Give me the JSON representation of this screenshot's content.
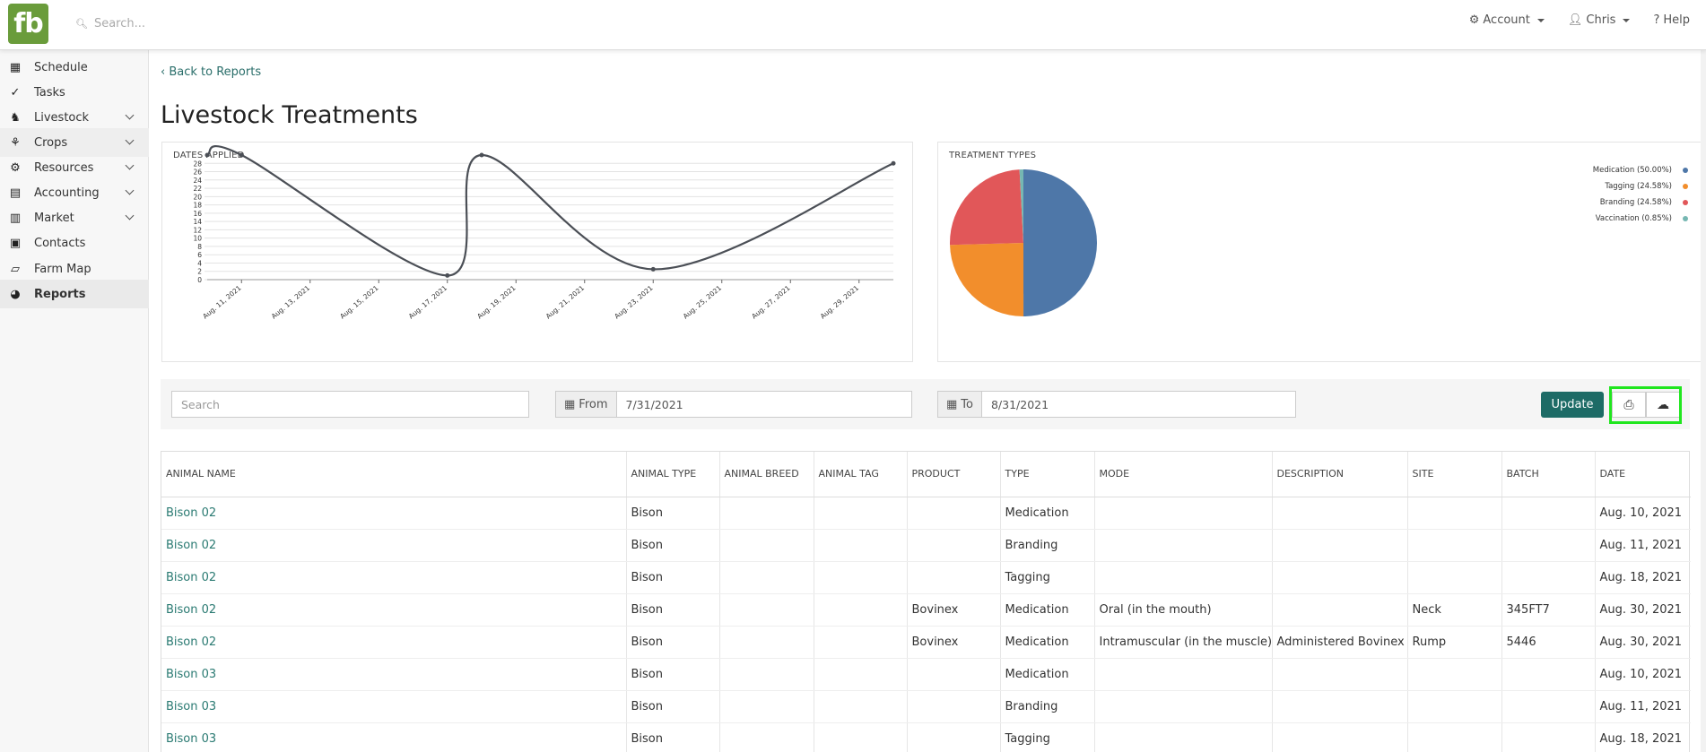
{
  "brand": {
    "logo_text": "fb",
    "logo_color": "#6a9c3b"
  },
  "topbar": {
    "search_placeholder": "Search...",
    "account_label": "Account",
    "user_label": "Chris",
    "help_label": "Help"
  },
  "sidebar": {
    "items": [
      {
        "label": "Schedule",
        "icon": "calendar-icon",
        "glyph": "▦",
        "expandable": false
      },
      {
        "label": "Tasks",
        "icon": "check-circle-icon",
        "glyph": "✓",
        "expandable": false
      },
      {
        "label": "Livestock",
        "icon": "horse-icon",
        "glyph": "♞",
        "expandable": true
      },
      {
        "label": "Crops",
        "icon": "seedling-icon",
        "glyph": "⚘",
        "expandable": true
      },
      {
        "label": "Resources",
        "icon": "tractor-icon",
        "glyph": "⚙",
        "expandable": true
      },
      {
        "label": "Accounting",
        "icon": "calculator-icon",
        "glyph": "▤",
        "expandable": true
      },
      {
        "label": "Market",
        "icon": "store-icon",
        "glyph": "▥",
        "expandable": true
      },
      {
        "label": "Contacts",
        "icon": "address-book-icon",
        "glyph": "▣",
        "expandable": false
      },
      {
        "label": "Farm Map",
        "icon": "map-icon",
        "glyph": "▱",
        "expandable": false
      },
      {
        "label": "Reports",
        "icon": "chart-pie-icon",
        "glyph": "◕",
        "expandable": false
      }
    ],
    "active": "Reports"
  },
  "page": {
    "back_label": "Back to Reports",
    "title": "Livestock Treatments"
  },
  "chart_data": [
    {
      "type": "line",
      "title": "DATES APPLIED",
      "x": [
        "2021-08-10",
        "2021-08-11",
        "2021-08-17",
        "2021-08-18",
        "2021-08-23",
        "2021-08-30"
      ],
      "series": [
        {
          "values": [
            30,
            30,
            1,
            30,
            2.5,
            28
          ]
        }
      ],
      "xticks": [
        "Aug. 11, 2021",
        "Aug. 13, 2021",
        "Aug. 15, 2021",
        "Aug. 17, 2021",
        "Aug. 19, 2021",
        "Aug. 21, 2021",
        "Aug. 23, 2021",
        "Aug. 25, 2021",
        "Aug. 27, 2021",
        "Aug. 29, 2021"
      ],
      "yticks": [
        0,
        2,
        4,
        6,
        8,
        10,
        12,
        14,
        16,
        18,
        20,
        22,
        24,
        26,
        28
      ],
      "ylim": [
        0,
        30
      ],
      "grid": true,
      "color": "#4b4f56"
    },
    {
      "type": "pie",
      "title": "TREATMENT TYPES",
      "slices": [
        {
          "label": "Medication (50.00%)",
          "value": 50.0,
          "color": "#4e77a8"
        },
        {
          "label": "Tagging (24.58%)",
          "value": 24.58,
          "color": "#f28e2c"
        },
        {
          "label": "Branding (24.58%)",
          "value": 24.58,
          "color": "#e15759"
        },
        {
          "label": "Vaccination (0.85%)",
          "value": 0.85,
          "color": "#76b7b2"
        }
      ],
      "legend": "top-right"
    }
  ],
  "filters": {
    "search_placeholder": "Search",
    "from_label": "From",
    "from_value": "7/31/2021",
    "to_label": "To",
    "to_value": "8/31/2021",
    "update_label": "Update",
    "print_glyph": "⎙",
    "download_glyph": "☁"
  },
  "table": {
    "columns": [
      "ANIMAL NAME",
      "ANIMAL TYPE",
      "ANIMAL BREED",
      "ANIMAL TAG",
      "PRODUCT",
      "TYPE",
      "MODE",
      "DESCRIPTION",
      "SITE",
      "BATCH",
      "DATE"
    ],
    "rows": [
      [
        "Bison 02",
        "Bison",
        "",
        "",
        "",
        "Medication",
        "",
        "",
        "",
        "",
        "Aug. 10, 2021"
      ],
      [
        "Bison 02",
        "Bison",
        "",
        "",
        "",
        "Branding",
        "",
        "",
        "",
        "",
        "Aug. 11, 2021"
      ],
      [
        "Bison 02",
        "Bison",
        "",
        "",
        "",
        "Tagging",
        "",
        "",
        "",
        "",
        "Aug. 18, 2021"
      ],
      [
        "Bison 02",
        "Bison",
        "",
        "",
        "Bovinex",
        "Medication",
        "Oral (in the mouth)",
        "",
        "Neck",
        "345FT7",
        "Aug. 30, 2021"
      ],
      [
        "Bison 02",
        "Bison",
        "",
        "",
        "Bovinex",
        "Medication",
        "Intramuscular (in the muscle)",
        "Administered Bovinex",
        "Rump",
        "5446",
        "Aug. 30, 2021"
      ],
      [
        "Bison 03",
        "Bison",
        "",
        "",
        "",
        "Medication",
        "",
        "",
        "",
        "",
        "Aug. 10, 2021"
      ],
      [
        "Bison 03",
        "Bison",
        "",
        "",
        "",
        "Branding",
        "",
        "",
        "",
        "",
        "Aug. 11, 2021"
      ],
      [
        "Bison 03",
        "Bison",
        "",
        "",
        "",
        "Tagging",
        "",
        "",
        "",
        "",
        "Aug. 18, 2021"
      ]
    ]
  }
}
